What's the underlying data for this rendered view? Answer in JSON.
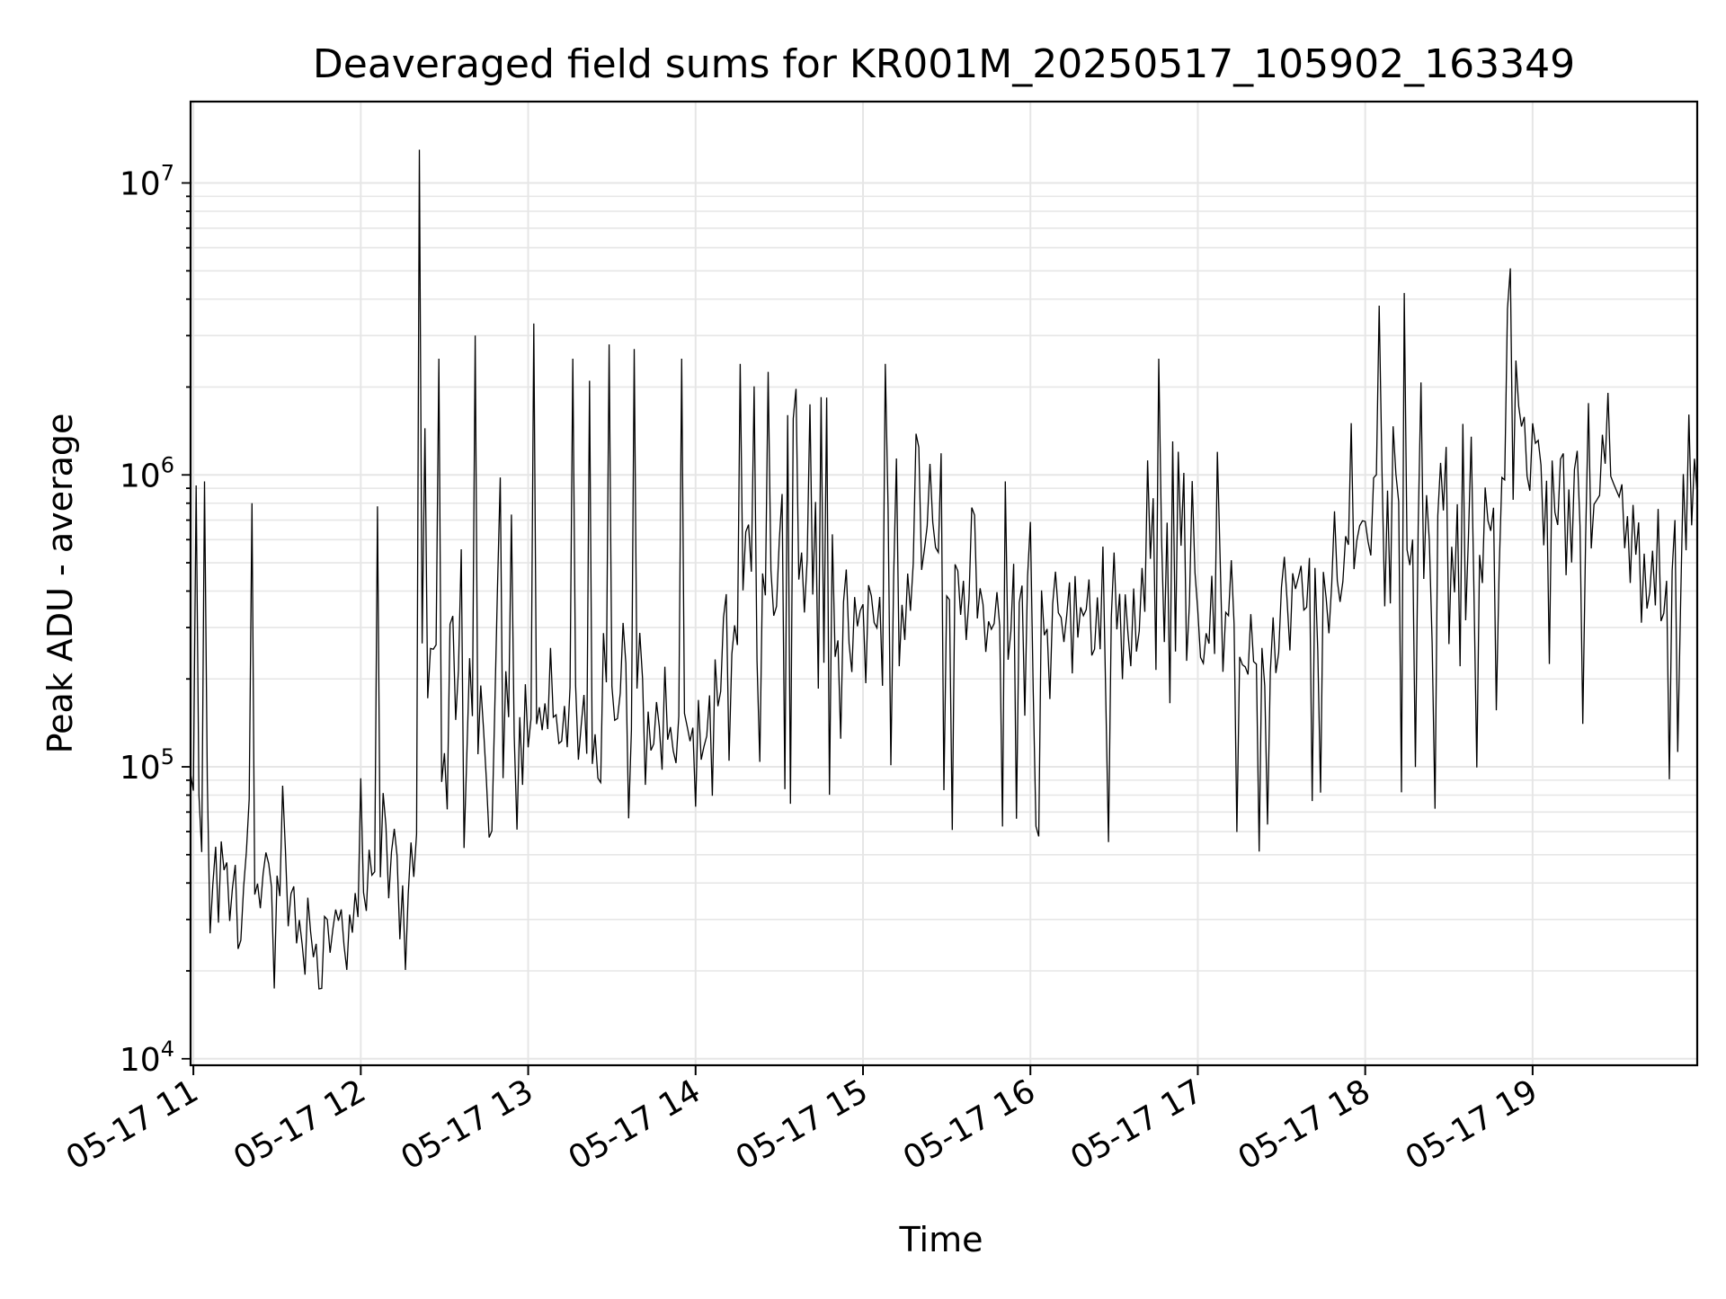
{
  "chart_data": {
    "type": "line",
    "title": "Deaveraged field sums for KR001M_20250517_105902_163349",
    "xlabel": "Time",
    "ylabel": "Peak ADU - average",
    "yscale": "log",
    "ylim": [
      9500,
      19000000
    ],
    "xlim": [
      "2025-05-17 10:59",
      "2025-05-17 19:59"
    ],
    "x_tick_labels": [
      "05-17 11",
      "05-17 12",
      "05-17 13",
      "05-17 14",
      "05-17 15",
      "05-17 16",
      "05-17 17",
      "05-17 18",
      "05-17 19"
    ],
    "y_ticks": [
      {
        "base": "10",
        "exp": "4",
        "value": 10000
      },
      {
        "base": "10",
        "exp": "5",
        "value": 100000
      },
      {
        "base": "10",
        "exp": "6",
        "value": 1000000
      },
      {
        "base": "10",
        "exp": "7",
        "value": 10000000
      }
    ],
    "grid": true,
    "line_color": "#000000",
    "series": [
      {
        "sampling": "approximately one reading per minute",
        "x": [
          "2025-05-17 10:59",
          "2025-05-17 11:09",
          "2025-05-17 11:19",
          "2025-05-17 11:29",
          "2025-05-17 11:39",
          "2025-05-17 11:49",
          "2025-05-17 11:59",
          "2025-05-17 12:09",
          "2025-05-17 12:19",
          "2025-05-17 12:22",
          "2025-05-17 12:32",
          "2025-05-17 12:42",
          "2025-05-17 12:52",
          "2025-05-17 13:02",
          "2025-05-17 13:12",
          "2025-05-17 13:22",
          "2025-05-17 13:32",
          "2025-05-17 13:42",
          "2025-05-17 13:52",
          "2025-05-17 14:02",
          "2025-05-17 14:12",
          "2025-05-17 14:22",
          "2025-05-17 14:32",
          "2025-05-17 14:42",
          "2025-05-17 14:52",
          "2025-05-17 15:02",
          "2025-05-17 15:12",
          "2025-05-17 15:22",
          "2025-05-17 15:32",
          "2025-05-17 15:42",
          "2025-05-17 15:52",
          "2025-05-17 16:02",
          "2025-05-17 16:12",
          "2025-05-17 16:22",
          "2025-05-17 16:32",
          "2025-05-17 16:42",
          "2025-05-17 16:52",
          "2025-05-17 17:02",
          "2025-05-17 17:12",
          "2025-05-17 17:22",
          "2025-05-17 17:32",
          "2025-05-17 17:42",
          "2025-05-17 17:52",
          "2025-05-17 18:02",
          "2025-05-17 18:12",
          "2025-05-17 18:22",
          "2025-05-17 18:32",
          "2025-05-17 18:42",
          "2025-05-17 18:52",
          "2025-05-17 19:02",
          "2025-05-17 19:12",
          "2025-05-17 19:22",
          "2025-05-17 19:32",
          "2025-05-17 19:42",
          "2025-05-17 19:52",
          "2025-05-17 19:59"
        ],
        "y": [
          80000,
          45000,
          38000,
          35000,
          30000,
          28000,
          30000,
          40000,
          45000,
          220000,
          170000,
          160000,
          150000,
          140000,
          160000,
          130000,
          200000,
          150000,
          110000,
          140000,
          250000,
          450000,
          550000,
          400000,
          350000,
          300000,
          330000,
          800000,
          400000,
          300000,
          350000,
          280000,
          300000,
          350000,
          300000,
          450000,
          450000,
          350000,
          300000,
          250000,
          350000,
          400000,
          400000,
          900000,
          850000,
          700000,
          500000,
          700000,
          1300000,
          1100000,
          900000,
          850000,
          800000,
          350000,
          550000,
          1200000
        ],
        "envelope_low": [
          40000,
          18000,
          17000,
          16000,
          16000,
          17000,
          17000,
          18000,
          18000,
          60000,
          50000,
          50000,
          60000,
          60000,
          55000,
          55000,
          55000,
          50000,
          50000,
          60000,
          70000,
          80000,
          70000,
          60000,
          70000,
          70000,
          80000,
          70000,
          60000,
          55000,
          55000,
          55000,
          55000,
          50000,
          55000,
          60000,
          60000,
          50000,
          50000,
          48000,
          60000,
          70000,
          70000,
          100000,
          80000,
          70000,
          65000,
          80000,
          200000,
          180000,
          150000,
          100000,
          80000,
          80000,
          90000,
          400000
        ],
        "envelope_high": [
          900000,
          110000,
          100000,
          100000,
          100000,
          110000,
          110000,
          110000,
          110000,
          2500000,
          1000000,
          500000,
          600000,
          3000000,
          1500000,
          2500000,
          2700000,
          2700000,
          2500000,
          1000000,
          2500000,
          2500000,
          2500000,
          2000000,
          1800000,
          900000,
          1200000,
          2500000,
          1800000,
          800000,
          900000,
          1100000,
          750000,
          800000,
          700000,
          2600000,
          1800000,
          900000,
          800000,
          800000,
          900000,
          1000000,
          1000000,
          4000000,
          3500000,
          2800000,
          2500000,
          2500000,
          5000000,
          3500000,
          2800000,
          2200000,
          1800000,
          900000,
          2000000,
          3000000
        ],
        "spikes": [
          {
            "x": "2025-05-17 11:01",
            "y": 920000
          },
          {
            "x": "2025-05-17 11:04",
            "y": 950000
          },
          {
            "x": "2025-05-17 11:21",
            "y": 800000
          },
          {
            "x": "2025-05-17 12:06",
            "y": 780000
          },
          {
            "x": "2025-05-17 12:21",
            "y": 13000000
          },
          {
            "x": "2025-05-17 12:28",
            "y": 2500000
          },
          {
            "x": "2025-05-17 12:41",
            "y": 3000000
          },
          {
            "x": "2025-05-17 12:50",
            "y": 980000
          },
          {
            "x": "2025-05-17 13:02",
            "y": 3300000
          },
          {
            "x": "2025-05-17 13:16",
            "y": 2500000
          },
          {
            "x": "2025-05-17 13:29",
            "y": 2800000
          },
          {
            "x": "2025-05-17 13:38",
            "y": 2700000
          },
          {
            "x": "2025-05-17 13:55",
            "y": 2500000
          },
          {
            "x": "2025-05-17 14:16",
            "y": 2400000
          },
          {
            "x": "2025-05-17 15:08",
            "y": 2400000
          },
          {
            "x": "2025-05-17 15:51",
            "y": 950000
          },
          {
            "x": "2025-05-17 16:46",
            "y": 2500000
          },
          {
            "x": "2025-05-17 17:07",
            "y": 1200000
          },
          {
            "x": "2025-05-17 18:05",
            "y": 3800000
          },
          {
            "x": "2025-05-17 18:14",
            "y": 4200000
          },
          {
            "x": "2025-05-17 18:52",
            "y": 5100000
          }
        ]
      }
    ]
  }
}
